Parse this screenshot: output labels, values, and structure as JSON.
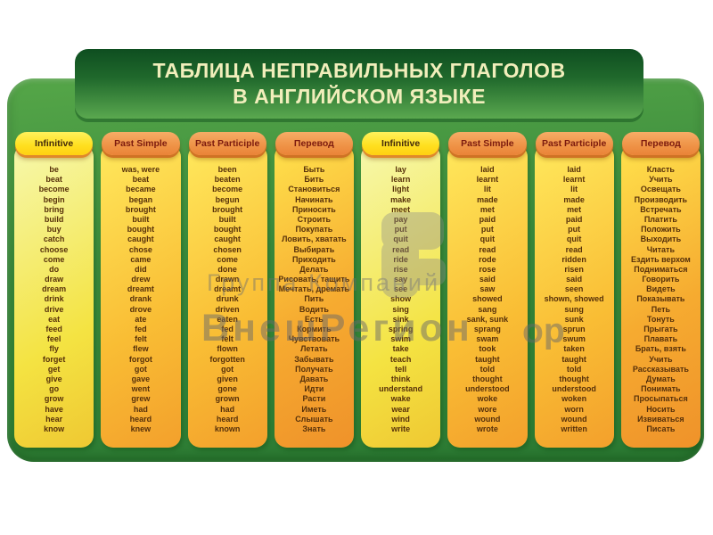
{
  "title": {
    "line1": "ТАБЛИЦА НЕПРАВИЛЬНЫХ ГЛАГОЛОВ",
    "line2": "В АНГЛИЙСКОМ ЯЗЫКЕ"
  },
  "watermark": {
    "line1": "Группа Компаний",
    "line2": "ВнешРегион",
    "tail": "ор"
  },
  "colors": {
    "panel_green": "#3a8a3c",
    "title_green_dark": "#0e4e20",
    "pill_yellow": "#ffdf1e",
    "pill_orange": "#ef9246",
    "body_yellow": "#ffe85c",
    "body_orange": "#f3a02c",
    "title_text": "#f1eebb",
    "verb_text": "#56300a"
  },
  "table": {
    "columns": [
      {
        "header": "Infinitive",
        "header_style": "yellow",
        "variant": "pale",
        "items": [
          "be",
          "beat",
          "become",
          "begin",
          "bring",
          "build",
          "buy",
          "catch",
          "choose",
          "come",
          "do",
          "draw",
          "dream",
          "drink",
          "drive",
          "eat",
          "feed",
          "feel",
          "fly",
          "forget",
          "get",
          "give",
          "go",
          "grow",
          "have",
          "hear",
          "know"
        ]
      },
      {
        "header": "Past Simple",
        "header_style": "orange",
        "variant": "mid",
        "items": [
          "was, were",
          "beat",
          "became",
          "began",
          "brought",
          "built",
          "bought",
          "caught",
          "chose",
          "came",
          "did",
          "drew",
          "dreamt",
          "drank",
          "drove",
          "ate",
          "fed",
          "felt",
          "flew",
          "forgot",
          "got",
          "gave",
          "went",
          "grew",
          "had",
          "heard",
          "knew"
        ]
      },
      {
        "header": "Past Participle",
        "header_style": "orange",
        "variant": "mid",
        "items": [
          "been",
          "beaten",
          "become",
          "begun",
          "brought",
          "built",
          "bought",
          "caught",
          "chosen",
          "come",
          "done",
          "drawn",
          "dreamt",
          "drunk",
          "driven",
          "eaten",
          "fed",
          "felt",
          "flown",
          "forgotten",
          "got",
          "given",
          "gone",
          "grown",
          "had",
          "heard",
          "known"
        ]
      },
      {
        "header": "Перевод",
        "header_style": "orange",
        "variant": "deep",
        "items": [
          "Быть",
          "Бить",
          "Становиться",
          "Начинать",
          "Приносить",
          "Строить",
          "Покупать",
          "Ловить, хватать",
          "Выбирать",
          "Приходить",
          "Делать",
          "Рисовать, тащить",
          "Мечтать, дремать",
          "Пить",
          "Водить",
          "Есть",
          "Кормить",
          "Чувствовать",
          "Летать",
          "Забывать",
          "Получать",
          "Давать",
          "Идти",
          "Расти",
          "Иметь",
          "Слышать",
          "Знать"
        ]
      },
      {
        "header": "Infinitive",
        "header_style": "yellow",
        "variant": "pale",
        "items": [
          "lay",
          "learn",
          "light",
          "make",
          "meet",
          "pay",
          "put",
          "quit",
          "read",
          "ride",
          "rise",
          "say",
          "see",
          "show",
          "sing",
          "sink",
          "spring",
          "swim",
          "take",
          "teach",
          "tell",
          "think",
          "understand",
          "wake",
          "wear",
          "wind",
          "write"
        ]
      },
      {
        "header": "Past Simple",
        "header_style": "orange",
        "variant": "mid",
        "items": [
          "laid",
          "learnt",
          "lit",
          "made",
          "met",
          "paid",
          "put",
          "quit",
          "read",
          "rode",
          "rose",
          "said",
          "saw",
          "showed",
          "sang",
          "sank, sunk",
          "sprang",
          "swam",
          "took",
          "taught",
          "told",
          "thought",
          "understood",
          "woke",
          "wore",
          "wound",
          "wrote"
        ]
      },
      {
        "header": "Past Participle",
        "header_style": "orange",
        "variant": "mid",
        "items": [
          "laid",
          "learnt",
          "lit",
          "made",
          "met",
          "paid",
          "put",
          "quit",
          "read",
          "ridden",
          "risen",
          "said",
          "seen",
          "shown, showed",
          "sung",
          "sunk",
          "sprun",
          "swum",
          "taken",
          "taught",
          "told",
          "thought",
          "understood",
          "woken",
          "worn",
          "wound",
          "written"
        ]
      },
      {
        "header": "Перевод",
        "header_style": "orange",
        "variant": "deep",
        "items": [
          "Класть",
          "Учить",
          "Освещать",
          "Производить",
          "Встречать",
          "Платить",
          "Положить",
          "Выходить",
          "Читать",
          "Ездить верхом",
          "Подниматься",
          "Говорить",
          "Видеть",
          "Показывать",
          "Петь",
          "Тонуть",
          "Прыгать",
          "Плавать",
          "Брать, взять",
          "Учить",
          "Рассказывать",
          "Думать",
          "Понимать",
          "Просыпаться",
          "Носить",
          "Извиваться",
          "Писать"
        ]
      }
    ]
  }
}
